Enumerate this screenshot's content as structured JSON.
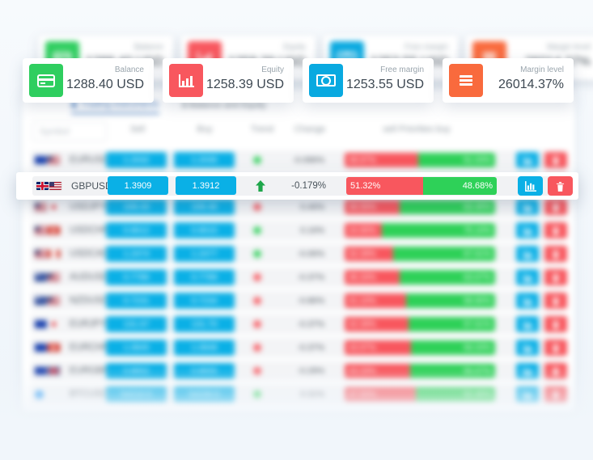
{
  "colors": {
    "cyan": "#0ab0e6",
    "green": "#2ed158",
    "red": "#f8575e",
    "orange": "#f96a3d",
    "dark": "#3d4852",
    "gray": "#9aa5ad"
  },
  "cards": [
    {
      "icon": "credit-card",
      "label": "Balance",
      "value": "1288.40 USD",
      "color": "#2fce5f"
    },
    {
      "icon": "bar-chart",
      "label": "Equity",
      "value": "1258.39 USD",
      "color": "#f8575e"
    },
    {
      "icon": "banknote",
      "label": "Free margin",
      "value": "1253.55 USD",
      "color": "#09a9e0"
    },
    {
      "icon": "menu",
      "label": "Margin level",
      "value": "26014.37%",
      "color": "#f96a3d"
    }
  ],
  "tabs": [
    {
      "label": "Trading instruments",
      "active": true
    },
    {
      "label": "$ Balance and Equity",
      "active": false
    }
  ],
  "table": {
    "search_placeholder": "Symbol",
    "headers": {
      "sell": "Sell",
      "buy": "Buy",
      "trend": "Trend",
      "change": "Change",
      "priorities": "sell Priorities buy"
    },
    "focus_row": {
      "symbol": "GBPUSD",
      "flags": [
        "gb",
        "us"
      ],
      "sell": "1.3909",
      "buy": "1.3912",
      "trend": "up",
      "change": "-0.179%",
      "sell_pct": "51.32%",
      "buy_pct": "48.68%"
    },
    "rows": [
      {
        "flags": [
          "eu",
          "us"
        ],
        "symbol": "EURUSD",
        "sell": "1.2032",
        "buy": "1.2035",
        "trend": "up",
        "change": "-0.096%",
        "sell_pct": "48.97%",
        "buy_pct": "51.03%"
      },
      {
        "flags": [
          "gb",
          "us"
        ],
        "symbol": "GBPUSD",
        "sell": "1.3909",
        "buy": "1.3912",
        "trend": "up",
        "change": "-0.179%",
        "sell_pct": "51.32%",
        "buy_pct": "48.68%"
      },
      {
        "flags": [
          "us",
          "jp"
        ],
        "symbol": "USDJPY",
        "sell": "109.43",
        "buy": "109.46",
        "trend": "down",
        "change": "0.46%",
        "sell_pct": "36.55%",
        "buy_pct": "63.45%"
      },
      {
        "flags": [
          "us",
          "ch"
        ],
        "symbol": "USDCHF",
        "sell": "0.9012",
        "buy": "0.9015",
        "trend": "up",
        "change": "0.16%",
        "sell_pct": "24.90%",
        "buy_pct": "75.10%"
      },
      {
        "flags": [
          "us",
          "ca"
        ],
        "symbol": "USDCAD",
        "sell": "1.2474",
        "buy": "1.2477",
        "trend": "up",
        "change": "-0.06%",
        "sell_pct": "32.39%",
        "buy_pct": "67.61%"
      },
      {
        "flags": [
          "au",
          "us"
        ],
        "symbol": "AUDUSD",
        "sell": "0.7786",
        "buy": "0.7789",
        "trend": "down",
        "change": "-0.37%",
        "sell_pct": "36.33%",
        "buy_pct": "63.67%"
      },
      {
        "flags": [
          "nz",
          "us"
        ],
        "symbol": "NZDUSD",
        "sell": "0.7231",
        "buy": "0.7234",
        "trend": "down",
        "change": "-0.86%",
        "sell_pct": "41.10%",
        "buy_pct": "58.90%"
      },
      {
        "flags": [
          "eu",
          "jp"
        ],
        "symbol": "EURJPY",
        "sell": "131.67",
        "buy": "131.70",
        "trend": "down",
        "change": "-0.37%",
        "sell_pct": "42.39%",
        "buy_pct": "57.61%"
      },
      {
        "flags": [
          "eu",
          "ch"
        ],
        "symbol": "EURCHF",
        "sell": "1.0845",
        "buy": "1.0848",
        "trend": "down",
        "change": "-0.37%",
        "sell_pct": "43.97%",
        "buy_pct": "56.03%"
      },
      {
        "flags": [
          "eu",
          "gb"
        ],
        "symbol": "EURGBP",
        "sell": "0.8652",
        "buy": "0.8655",
        "trend": "down",
        "change": "-0.29%",
        "sell_pct": "43.33%",
        "buy_pct": "56.67%"
      },
      {
        "flags": [
          "crypto"
        ],
        "symbol": "BTCUSD",
        "sell": "54210.5",
        "buy": "54230.5",
        "trend": "up",
        "change": "0.31%",
        "sell_pct": "47.55%",
        "buy_pct": "52.45%"
      }
    ]
  }
}
